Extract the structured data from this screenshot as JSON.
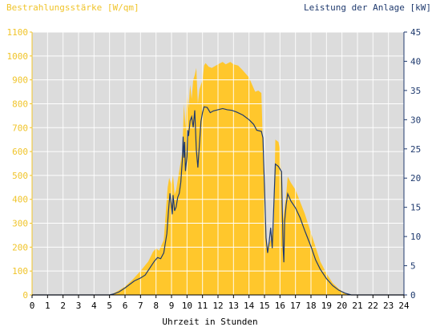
{
  "chart_data": {
    "type": "area",
    "ylabel_left": "Bestrahlungsstärke [W/qm]",
    "ylabel_right": "Leistung der Anlage [kW]",
    "xlabel": "Uhrzeit in Stunden",
    "xlim": [
      0,
      24
    ],
    "ylim_left": [
      0,
      1100
    ],
    "ylim_right": [
      0,
      45
    ],
    "x_ticks": [
      "0",
      "1",
      "2",
      "3",
      "4",
      "5",
      "6",
      "7",
      "8",
      "9",
      "10",
      "11",
      "12",
      "13",
      "14",
      "15",
      "16",
      "17",
      "18",
      "19",
      "20",
      "21",
      "22",
      "23",
      "24"
    ],
    "y_ticks_left": [
      "0",
      "100",
      "200",
      "300",
      "400",
      "500",
      "600",
      "700",
      "800",
      "900",
      "1000",
      "1100"
    ],
    "y_ticks_right": [
      "0",
      "5",
      "10",
      "15",
      "20",
      "25",
      "30",
      "35",
      "40",
      "45"
    ],
    "grid": true,
    "series": [
      {
        "name": "Bestrahlungsstärke [W/qm]",
        "axis": "left",
        "style": "area",
        "points": [
          [
            0,
            0
          ],
          [
            5,
            0
          ],
          [
            5.2,
            5
          ],
          [
            5.5,
            15
          ],
          [
            6,
            35
          ],
          [
            6.5,
            65
          ],
          [
            7,
            100
          ],
          [
            7.5,
            140
          ],
          [
            7.8,
            180
          ],
          [
            8,
            195
          ],
          [
            8.2,
            185
          ],
          [
            8.5,
            230
          ],
          [
            8.75,
            450
          ],
          [
            8.85,
            490
          ],
          [
            9,
            460
          ],
          [
            9.1,
            500
          ],
          [
            9.2,
            420
          ],
          [
            9.3,
            440
          ],
          [
            9.5,
            520
          ],
          [
            9.7,
            600
          ],
          [
            9.8,
            800
          ],
          [
            9.9,
            700
          ],
          [
            10,
            850
          ],
          [
            10.1,
            780
          ],
          [
            10.2,
            880
          ],
          [
            10.3,
            820
          ],
          [
            10.4,
            900
          ],
          [
            10.5,
            920
          ],
          [
            10.6,
            950
          ],
          [
            10.7,
            800
          ],
          [
            10.8,
            860
          ],
          [
            11,
            900
          ],
          [
            11.1,
            960
          ],
          [
            11.2,
            970
          ],
          [
            11.4,
            955
          ],
          [
            11.6,
            950
          ],
          [
            12,
            965
          ],
          [
            12.3,
            975
          ],
          [
            12.5,
            965
          ],
          [
            12.8,
            975
          ],
          [
            13,
            965
          ],
          [
            13.3,
            960
          ],
          [
            13.6,
            940
          ],
          [
            14,
            910
          ],
          [
            14.2,
            880
          ],
          [
            14.4,
            850
          ],
          [
            14.6,
            855
          ],
          [
            14.8,
            845
          ],
          [
            14.9,
            620
          ],
          [
            15.0,
            420
          ],
          [
            15.1,
            250
          ],
          [
            15.2,
            200
          ],
          [
            15.4,
            230
          ],
          [
            15.6,
            280
          ],
          [
            15.7,
            650
          ],
          [
            15.9,
            640
          ],
          [
            16,
            610
          ],
          [
            16.1,
            450
          ],
          [
            16.15,
            280
          ],
          [
            16.2,
            320
          ],
          [
            16.4,
            420
          ],
          [
            16.5,
            495
          ],
          [
            16.7,
            470
          ],
          [
            17,
            440
          ],
          [
            17.3,
            390
          ],
          [
            17.6,
            340
          ],
          [
            18,
            260
          ],
          [
            18.3,
            200
          ],
          [
            18.6,
            140
          ],
          [
            19,
            90
          ],
          [
            19.4,
            50
          ],
          [
            19.8,
            25
          ],
          [
            20.2,
            8
          ],
          [
            20.5,
            0
          ],
          [
            24,
            0
          ]
        ]
      },
      {
        "name": "Leistung der Anlage [kW]",
        "axis": "right",
        "style": "line",
        "points": [
          [
            0,
            0
          ],
          [
            5,
            0
          ],
          [
            5.3,
            0.2
          ],
          [
            5.6,
            0.5
          ],
          [
            6,
            1.2
          ],
          [
            6.3,
            1.8
          ],
          [
            6.6,
            2.4
          ],
          [
            7,
            2.9
          ],
          [
            7.3,
            3.4
          ],
          [
            7.6,
            4.6
          ],
          [
            7.9,
            5.8
          ],
          [
            8.1,
            6.4
          ],
          [
            8.3,
            6.2
          ],
          [
            8.5,
            7.2
          ],
          [
            8.7,
            10.5
          ],
          [
            8.8,
            14.2
          ],
          [
            8.9,
            17.4
          ],
          [
            9.0,
            15.2
          ],
          [
            9.05,
            13.8
          ],
          [
            9.1,
            17.1
          ],
          [
            9.2,
            14.4
          ],
          [
            9.3,
            15.1
          ],
          [
            9.4,
            16.7
          ],
          [
            9.5,
            17.4
          ],
          [
            9.6,
            19.3
          ],
          [
            9.7,
            23.1
          ],
          [
            9.75,
            27.1
          ],
          [
            9.8,
            23.5
          ],
          [
            9.85,
            26.2
          ],
          [
            9.9,
            21.2
          ],
          [
            10.0,
            23.7
          ],
          [
            10.05,
            28.2
          ],
          [
            10.1,
            27.2
          ],
          [
            10.2,
            29.8
          ],
          [
            10.3,
            30.5
          ],
          [
            10.4,
            28.7
          ],
          [
            10.5,
            31.6
          ],
          [
            10.6,
            24.9
          ],
          [
            10.7,
            21.8
          ],
          [
            10.8,
            25.7
          ],
          [
            10.9,
            29.7
          ],
          [
            11.0,
            31.2
          ],
          [
            11.1,
            32.2
          ],
          [
            11.3,
            32.1
          ],
          [
            11.5,
            31.2
          ],
          [
            11.7,
            31.5
          ],
          [
            12,
            31.7
          ],
          [
            12.3,
            31.9
          ],
          [
            12.6,
            31.7
          ],
          [
            12.9,
            31.6
          ],
          [
            13.2,
            31.3
          ],
          [
            13.6,
            30.8
          ],
          [
            14.0,
            30.0
          ],
          [
            14.3,
            29.2
          ],
          [
            14.5,
            28.2
          ],
          [
            14.8,
            28.0
          ],
          [
            14.9,
            26.9
          ],
          [
            15.0,
            18.5
          ],
          [
            15.1,
            9.8
          ],
          [
            15.2,
            7.2
          ],
          [
            15.3,
            9.0
          ],
          [
            15.4,
            11.5
          ],
          [
            15.5,
            8.0
          ],
          [
            15.6,
            15.2
          ],
          [
            15.7,
            22.4
          ],
          [
            15.9,
            22.0
          ],
          [
            16.1,
            21.1
          ],
          [
            16.2,
            8.2
          ],
          [
            16.25,
            5.6
          ],
          [
            16.3,
            12.6
          ],
          [
            16.4,
            15.5
          ],
          [
            16.5,
            17.3
          ],
          [
            16.7,
            16.1
          ],
          [
            17.0,
            14.9
          ],
          [
            17.3,
            13.2
          ],
          [
            17.6,
            11.0
          ],
          [
            18.0,
            8.3
          ],
          [
            18.3,
            6.0
          ],
          [
            18.6,
            4.4
          ],
          [
            19,
            2.8
          ],
          [
            19.4,
            1.6
          ],
          [
            19.8,
            0.8
          ],
          [
            20.2,
            0.3
          ],
          [
            20.6,
            0
          ],
          [
            24,
            0
          ]
        ]
      }
    ]
  },
  "colors": {
    "area_fill": "#ffc72c",
    "line": "#1f3a6e",
    "plot_bg": "#dcdcdc",
    "grid": "#ffffff",
    "left_axis_text": "#f0c42a",
    "right_axis_text": "#1f3a6e"
  }
}
